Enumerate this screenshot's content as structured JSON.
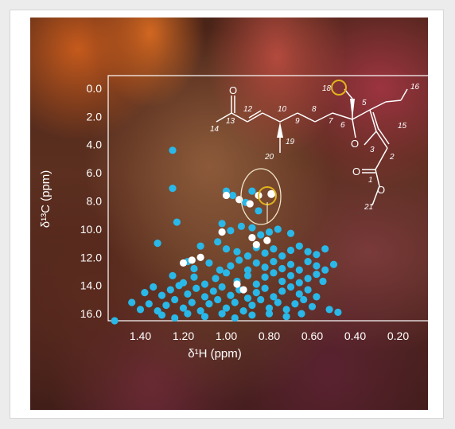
{
  "chart_data": {
    "type": "scatter",
    "title": "",
    "xlabel": "δ¹H (ppm)",
    "ylabel": "δ¹³C (ppm)",
    "xlim": [
      1.55,
      0.05
    ],
    "ylim": [
      -0.9,
      16.5
    ],
    "x_reversed": true,
    "y_reversed": true,
    "x_ticks": [
      1.4,
      1.2,
      1.0,
      0.8,
      0.6,
      0.4,
      0.2
    ],
    "x_tick_labels": [
      "1.40",
      "1.20",
      "1.00",
      "0.80",
      "0.60",
      "0.40",
      "0.20"
    ],
    "y_ticks": [
      0.0,
      2.0,
      4.0,
      6.0,
      8.0,
      10.0,
      12.0,
      14.0,
      16.0
    ],
    "y_tick_labels": [
      "0.0",
      "2.0",
      "4.0",
      "6.0",
      "8.0",
      "10.0",
      "12.0",
      "14.0",
      "16.0"
    ],
    "grid": false,
    "highlight_point": {
      "x": 0.79,
      "y": 7.5
    },
    "series": [
      {
        "color": "#29b8e8",
        "points": [
          [
            1.25,
            4.4
          ],
          [
            1.25,
            7.1
          ],
          [
            1.0,
            7.3
          ],
          [
            0.97,
            7.6
          ],
          [
            0.88,
            7.3
          ],
          [
            0.91,
            8.1
          ],
          [
            0.85,
            8.7
          ],
          [
            1.23,
            9.5
          ],
          [
            1.02,
            9.6
          ],
          [
            0.98,
            10.1
          ],
          [
            0.93,
            9.8
          ],
          [
            0.88,
            9.9
          ],
          [
            0.84,
            10.4
          ],
          [
            0.8,
            10.2
          ],
          [
            0.76,
            10.0
          ],
          [
            0.7,
            10.3
          ],
          [
            1.32,
            11.0
          ],
          [
            1.12,
            11.2
          ],
          [
            1.04,
            10.9
          ],
          [
            1.0,
            11.4
          ],
          [
            0.95,
            11.6
          ],
          [
            0.9,
            11.9
          ],
          [
            0.86,
            11.3
          ],
          [
            0.82,
            11.7
          ],
          [
            0.78,
            11.4
          ],
          [
            0.74,
            11.9
          ],
          [
            0.7,
            11.5
          ],
          [
            0.66,
            11.2
          ],
          [
            0.62,
            11.6
          ],
          [
            0.58,
            11.8
          ],
          [
            0.54,
            11.4
          ],
          [
            1.18,
            12.3
          ],
          [
            1.15,
            12.8
          ],
          [
            1.08,
            12.4
          ],
          [
            1.03,
            12.9
          ],
          [
            0.98,
            12.6
          ],
          [
            0.94,
            12.2
          ],
          [
            0.9,
            12.9
          ],
          [
            0.86,
            12.4
          ],
          [
            0.82,
            12.7
          ],
          [
            0.78,
            12.3
          ],
          [
            0.74,
            12.8
          ],
          [
            0.7,
            12.5
          ],
          [
            0.66,
            12.9
          ],
          [
            0.62,
            12.3
          ],
          [
            0.58,
            12.6
          ],
          [
            0.54,
            12.9
          ],
          [
            0.5,
            12.5
          ],
          [
            1.25,
            13.3
          ],
          [
            1.2,
            13.8
          ],
          [
            1.15,
            13.4
          ],
          [
            1.1,
            13.9
          ],
          [
            1.05,
            13.5
          ],
          [
            1.0,
            13.1
          ],
          [
            0.95,
            13.7
          ],
          [
            0.9,
            13.3
          ],
          [
            0.86,
            13.9
          ],
          [
            0.82,
            13.4
          ],
          [
            0.78,
            13.1
          ],
          [
            0.74,
            13.7
          ],
          [
            0.7,
            13.3
          ],
          [
            0.66,
            13.8
          ],
          [
            0.62,
            13.5
          ],
          [
            0.58,
            13.2
          ],
          [
            0.55,
            13.7
          ],
          [
            1.38,
            14.5
          ],
          [
            1.34,
            14.1
          ],
          [
            1.3,
            14.7
          ],
          [
            1.26,
            14.3
          ],
          [
            1.22,
            14.0
          ],
          [
            1.18,
            14.6
          ],
          [
            1.14,
            14.2
          ],
          [
            1.1,
            14.8
          ],
          [
            1.06,
            14.4
          ],
          [
            1.02,
            14.1
          ],
          [
            0.98,
            14.7
          ],
          [
            0.94,
            14.3
          ],
          [
            0.9,
            14.9
          ],
          [
            0.86,
            14.5
          ],
          [
            0.82,
            14.2
          ],
          [
            0.78,
            14.8
          ],
          [
            0.74,
            14.4
          ],
          [
            0.7,
            14.1
          ],
          [
            0.66,
            14.6
          ],
          [
            0.62,
            14.3
          ],
          [
            0.58,
            14.8
          ],
          [
            1.44,
            15.2
          ],
          [
            1.4,
            15.7
          ],
          [
            1.36,
            15.3
          ],
          [
            1.32,
            15.8
          ],
          [
            1.28,
            15.4
          ],
          [
            1.24,
            15.0
          ],
          [
            1.2,
            15.6
          ],
          [
            1.16,
            15.2
          ],
          [
            1.12,
            15.8
          ],
          [
            1.08,
            15.3
          ],
          [
            1.04,
            15.0
          ],
          [
            1.0,
            15.6
          ],
          [
            0.96,
            15.2
          ],
          [
            0.92,
            15.8
          ],
          [
            0.88,
            15.4
          ],
          [
            0.84,
            15.0
          ],
          [
            0.8,
            15.6
          ],
          [
            0.76,
            15.2
          ],
          [
            0.72,
            15.7
          ],
          [
            0.68,
            15.3
          ],
          [
            0.64,
            15.0
          ],
          [
            0.6,
            15.5
          ],
          [
            1.3,
            16.1
          ],
          [
            1.24,
            16.3
          ],
          [
            1.18,
            16.0
          ],
          [
            1.1,
            16.2
          ],
          [
            1.02,
            16.0
          ],
          [
            0.96,
            16.3
          ],
          [
            0.88,
            16.1
          ],
          [
            0.8,
            16.0
          ],
          [
            0.72,
            16.2
          ],
          [
            0.65,
            16.0
          ],
          [
            1.52,
            16.5
          ],
          [
            0.52,
            15.7
          ],
          [
            0.48,
            15.9
          ]
        ]
      },
      {
        "color": "#ffffff",
        "points": [
          [
            1.0,
            7.6
          ],
          [
            0.94,
            7.9
          ],
          [
            0.89,
            8.2
          ],
          [
            0.85,
            7.6
          ],
          [
            1.02,
            10.2
          ],
          [
            0.88,
            10.6
          ],
          [
            0.86,
            11.1
          ],
          [
            0.81,
            10.8
          ],
          [
            1.2,
            12.4
          ],
          [
            1.16,
            12.2
          ],
          [
            1.12,
            12.0
          ],
          [
            0.95,
            13.9
          ],
          [
            0.92,
            14.3
          ]
        ]
      }
    ]
  },
  "molecule": {
    "atoms": {
      "o_ketone": "O",
      "o_ring": "O",
      "o_ester_dbl": "O",
      "o_ester": "O"
    },
    "numbers": [
      "1",
      "2",
      "3",
      "5",
      "6",
      "7",
      "8",
      "9",
      "10",
      "12",
      "13",
      "14",
      "15",
      "16",
      "18",
      "19",
      "20",
      "21"
    ],
    "line_color": "#ffffff",
    "highlight_color": "#e0b41c"
  }
}
